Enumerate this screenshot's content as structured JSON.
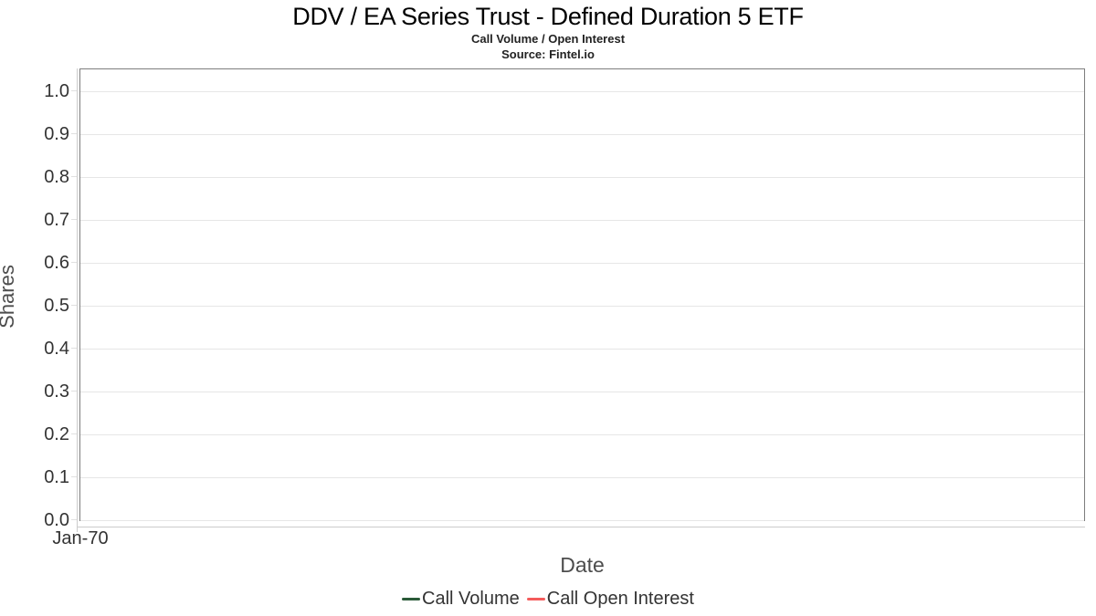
{
  "header": {
    "title": "DDV / EA Series Trust - Defined Duration 5 ETF",
    "subtitle": "Call Volume / Open Interest",
    "source": "Source: Fintel.io"
  },
  "chart_data": {
    "type": "line",
    "title": "DDV / EA Series Trust - Defined Duration 5 ETF",
    "subtitle": "Call Volume / Open Interest",
    "source": "Source: Fintel.io",
    "xlabel": "Date",
    "ylabel": "Shares",
    "x_ticks": [
      "Jan-70"
    ],
    "y_ticks": [
      0.0,
      0.1,
      0.2,
      0.3,
      0.4,
      0.5,
      0.6,
      0.7,
      0.8,
      0.9,
      1.0
    ],
    "ylim": [
      0,
      1.05
    ],
    "grid": true,
    "legend_position": "bottom",
    "series": [
      {
        "name": "Call Volume",
        "color": "#2a5a38",
        "x": [],
        "values": []
      },
      {
        "name": "Call Open Interest",
        "color": "#f45b5b",
        "x": [],
        "values": []
      }
    ]
  },
  "colors": {
    "plot_border": "#7d7d7d",
    "gridline": "#e6e6e6",
    "axis_line": "#cccccc",
    "title_text": "#000000",
    "tick_text": "#333333",
    "axis_title_text": "#4d4d4d"
  }
}
